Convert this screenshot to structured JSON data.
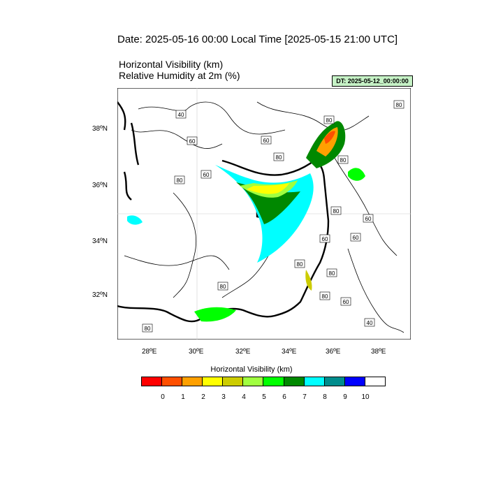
{
  "header": {
    "date_line": "Date: 2025-05-16  00:00 Local Time [2025-05-15  21:00 UTC]",
    "title_1": "Horizontal Visibility   (km)",
    "title_2": "Relative Humidity at 2m   (%)",
    "dt_badge": "DT: 2025-05-12_00:00:00"
  },
  "map": {
    "lon_ticks": [
      "28ºE",
      "30ºE",
      "32ºE",
      "34ºE",
      "36ºE",
      "38ºE"
    ],
    "lat_ticks": [
      "38ºN",
      "36ºN",
      "34ºN",
      "32ºN"
    ],
    "contour_labels": [
      "40",
      "60",
      "60",
      "80",
      "80",
      "80",
      "80",
      "60",
      "80",
      "60",
      "80",
      "60",
      "80",
      "80",
      "60",
      "80",
      "80",
      "60",
      "80",
      "40"
    ]
  },
  "colorbar": {
    "title": "Horizontal Visibility  (km)",
    "colors": [
      "#ff0000",
      "#ff4f00",
      "#ffa000",
      "#ffff00",
      "#cccc00",
      "#a0ff40",
      "#00ff00",
      "#008800",
      "#00ffff",
      "#008c8c",
      "#0000ff",
      "#ffffff"
    ],
    "ticks": [
      "0",
      "1",
      "2",
      "3",
      "4",
      "5",
      "6",
      "7",
      "8",
      "9",
      "10"
    ]
  }
}
